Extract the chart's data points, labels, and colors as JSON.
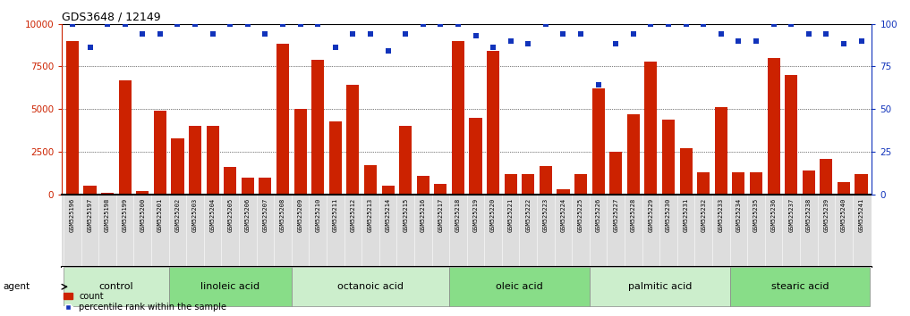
{
  "title": "GDS3648 / 12149",
  "samples": [
    "GSM525196",
    "GSM525197",
    "GSM525198",
    "GSM525199",
    "GSM525200",
    "GSM525201",
    "GSM525202",
    "GSM525203",
    "GSM525204",
    "GSM525205",
    "GSM525206",
    "GSM525207",
    "GSM525208",
    "GSM525209",
    "GSM525210",
    "GSM525211",
    "GSM525212",
    "GSM525213",
    "GSM525214",
    "GSM525215",
    "GSM525216",
    "GSM525217",
    "GSM525218",
    "GSM525219",
    "GSM525220",
    "GSM525221",
    "GSM525222",
    "GSM525223",
    "GSM525224",
    "GSM525225",
    "GSM525226",
    "GSM525227",
    "GSM525228",
    "GSM525229",
    "GSM525230",
    "GSM525231",
    "GSM525232",
    "GSM525233",
    "GSM525234",
    "GSM525235",
    "GSM525236",
    "GSM525237",
    "GSM525238",
    "GSM525239",
    "GSM525240",
    "GSM525241"
  ],
  "counts": [
    9000,
    500,
    100,
    6700,
    200,
    4900,
    3300,
    4000,
    4000,
    1600,
    1000,
    1000,
    8800,
    5000,
    7900,
    4300,
    6400,
    1700,
    500,
    4000,
    1100,
    600,
    9000,
    4500,
    8400,
    1200,
    1200,
    1650,
    300,
    1200,
    6200,
    2500,
    4700,
    7800,
    4400,
    2700,
    1300,
    5100,
    1300,
    1300,
    8000,
    7000,
    1400,
    2100,
    700,
    1200
  ],
  "percentiles": [
    100,
    86,
    100,
    100,
    94,
    94,
    100,
    100,
    94,
    100,
    100,
    94,
    100,
    100,
    100,
    86,
    94,
    94,
    84,
    94,
    100,
    100,
    100,
    93,
    86,
    90,
    88,
    100,
    94,
    94,
    64,
    88,
    94,
    100,
    100,
    100,
    100,
    94,
    90,
    90,
    100,
    100,
    94,
    94,
    88,
    90
  ],
  "groups": [
    {
      "label": "control",
      "start": 0,
      "end": 5
    },
    {
      "label": "linoleic acid",
      "start": 6,
      "end": 12
    },
    {
      "label": "octanoic acid",
      "start": 13,
      "end": 21
    },
    {
      "label": "oleic acid",
      "start": 22,
      "end": 29
    },
    {
      "label": "palmitic acid",
      "start": 30,
      "end": 37
    },
    {
      "label": "stearic acid",
      "start": 38,
      "end": 45
    }
  ],
  "bar_color": "#cc2200",
  "dot_color": "#1133bb",
  "left_axis_color": "#cc2200",
  "right_axis_color": "#1133bb",
  "group_color_light": "#cceecc",
  "group_color_dark": "#88dd88",
  "xtick_bg": "#dddddd",
  "ylim_left": [
    0,
    10000
  ],
  "ylim_right": [
    0,
    100
  ],
  "yticks_left": [
    0,
    2500,
    5000,
    7500,
    10000
  ],
  "yticks_right": [
    0,
    25,
    50,
    75,
    100
  ]
}
